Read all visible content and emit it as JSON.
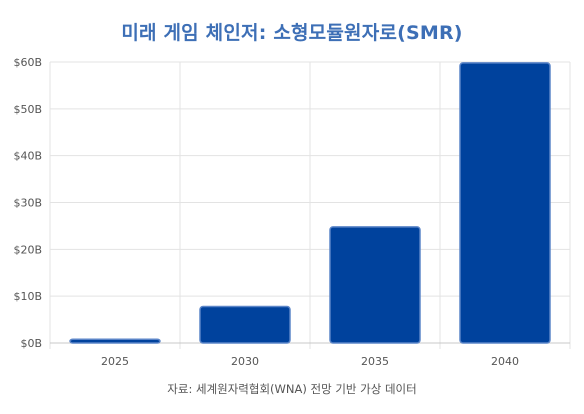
{
  "title": "미래 게임 체인저: 소형모듈원자로(SMR)",
  "source": "자료: 세계원자력협회(WNA) 전망 기반 가상 데이터",
  "colors": {
    "title": "#3d6fb6",
    "bar_fill": "#00429d",
    "bar_stroke": "#5b85c8",
    "grid": "#e3e3e3",
    "axis_text": "#555555"
  },
  "chart_data": {
    "type": "bar",
    "categories": [
      "2025",
      "2030",
      "2035",
      "2040"
    ],
    "values": [
      0.8,
      7.8,
      24.8,
      59.8
    ],
    "ylim": [
      0,
      60
    ],
    "yticks": [
      0,
      10,
      20,
      30,
      40,
      50,
      60
    ],
    "ytick_labels": [
      "$0B",
      "$10B",
      "$20B",
      "$30B",
      "$40B",
      "$50B",
      "$60B"
    ],
    "title": "미래 게임 체인저: 소형모듈원자로(SMR)",
    "xlabel": "",
    "ylabel": "",
    "grid": true,
    "legend": "none"
  }
}
